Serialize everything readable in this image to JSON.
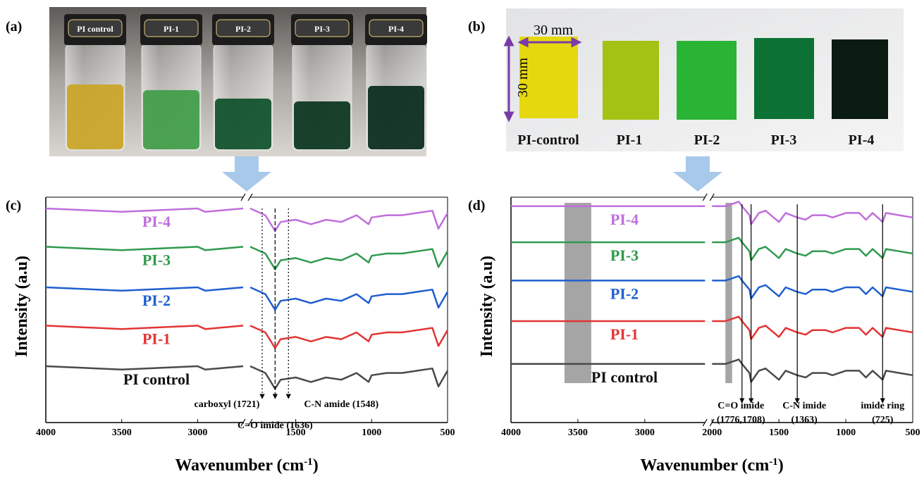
{
  "panels": {
    "a": {
      "label": "(a)",
      "vials": [
        "PI control",
        "PI-1",
        "PI-2",
        "PI-3",
        "PI-4"
      ]
    },
    "b": {
      "label": "(b)",
      "width": "30 mm",
      "height": "30 mm",
      "films": [
        "PI-control",
        "PI-1",
        "PI-2",
        "PI-3",
        "PI-4"
      ]
    },
    "c": {
      "label": "(c)"
    },
    "d": {
      "label": "(d)"
    }
  },
  "chart_data": [
    {
      "type": "line",
      "x_label": [
        "Wavenumber (cm",
        "-1",
        ")"
      ],
      "y_label": "Intensity (a.u)",
      "xlim": [
        4000,
        500
      ],
      "x_segments": [
        [
          4000,
          2700
        ],
        [
          1800,
          500
        ]
      ],
      "xticks": [
        4000,
        3500,
        3000,
        1500,
        1000,
        500
      ],
      "ylim": [
        0,
        100
      ],
      "x": [
        4000,
        3500,
        3000,
        2950,
        2700,
        2250,
        1800,
        1700,
        1636,
        1600,
        1500,
        1400,
        1300,
        1200,
        1100,
        1020,
        1000,
        900,
        800,
        700,
        600,
        560,
        500
      ],
      "series": [
        {
          "name": "PI-4",
          "color": "#bf6fdc",
          "values": [
            95,
            93.5,
            95,
            93.5,
            95,
            null,
            95,
            92,
            85,
            89,
            90,
            88,
            90,
            89,
            92,
            88,
            91,
            92,
            92,
            93,
            94,
            86,
            93
          ]
        },
        {
          "name": "PI-3",
          "color": "#2f9a4e",
          "values": [
            78,
            76.5,
            78,
            76.5,
            78,
            null,
            78,
            75,
            68,
            72,
            73,
            71,
            73,
            72,
            75,
            71,
            74,
            75,
            75,
            76,
            77,
            69,
            76
          ]
        },
        {
          "name": "PI-2",
          "color": "#1f5fd0",
          "values": [
            60,
            58.5,
            60,
            58.5,
            60,
            null,
            60,
            57,
            50,
            54,
            55,
            53,
            55,
            54,
            57,
            53,
            56,
            57,
            57,
            58,
            59,
            51,
            58
          ]
        },
        {
          "name": "PI-1",
          "color": "#e23434",
          "values": [
            43,
            41.5,
            43,
            41.5,
            43,
            null,
            43,
            40,
            33,
            37,
            38,
            36,
            38,
            37,
            40,
            36,
            39,
            40,
            40,
            41,
            42,
            34,
            41
          ]
        },
        {
          "name": "PI control",
          "color": "#4a4a4a",
          "values": [
            25,
            23.5,
            25,
            23.5,
            25,
            null,
            25,
            22,
            15,
            19,
            20,
            18,
            20,
            19,
            22,
            18,
            21,
            22,
            22,
            23,
            24,
            16,
            23
          ]
        }
      ],
      "annotations": [
        {
          "x": [
            1721
          ],
          "label": "carboxyl (1721)"
        },
        {
          "x": [
            1636
          ],
          "label": "C=O  imide (1636)"
        },
        {
          "x": [
            1548
          ],
          "label": "C-N  amide (1548)"
        }
      ]
    },
    {
      "type": "line",
      "x_label": [
        "Wavenumber (cm",
        "-1",
        ")"
      ],
      "y_label": "Intensity (a.u)",
      "xlim": [
        4000,
        500
      ],
      "x_segments": [
        [
          4000,
          2550
        ],
        [
          2000,
          500
        ]
      ],
      "xticks": [
        4000,
        3500,
        3000,
        2000,
        1500,
        1000,
        500
      ],
      "ylim": [
        0,
        100
      ],
      "shaded": [
        [
          3600,
          3400
        ],
        [
          1900,
          1850
        ]
      ],
      "x": [
        4000,
        3500,
        3000,
        2550,
        2250,
        2000,
        1900,
        1800,
        1776,
        1720,
        1708,
        1650,
        1600,
        1500,
        1450,
        1363,
        1300,
        1250,
        1150,
        1100,
        1000,
        900,
        850,
        800,
        725,
        700,
        600,
        500
      ],
      "series": [
        {
          "name": "PI-4",
          "color": "#bf6fdc",
          "values": [
            96,
            96,
            96,
            96,
            null,
            96,
            96,
            98,
            96,
            92,
            88,
            93,
            94,
            89,
            93,
            91,
            90,
            92,
            92,
            91,
            93,
            93,
            90,
            93,
            89,
            93,
            92,
            91
          ]
        },
        {
          "name": "PI-3",
          "color": "#2f9a4e",
          "values": [
            80,
            80,
            80,
            80,
            null,
            80,
            80,
            82,
            80,
            76,
            72,
            77,
            78,
            73,
            77,
            75,
            74,
            76,
            76,
            75,
            77,
            77,
            74,
            77,
            73,
            77,
            76,
            75
          ]
        },
        {
          "name": "PI-2",
          "color": "#1f5fd0",
          "values": [
            63,
            63,
            63,
            63,
            null,
            63,
            63,
            65,
            63,
            59,
            55,
            60,
            61,
            56,
            60,
            58,
            57,
            59,
            59,
            58,
            60,
            60,
            57,
            60,
            56,
            60,
            59,
            58
          ]
        },
        {
          "name": "PI-1",
          "color": "#e23434",
          "values": [
            45,
            45,
            45,
            45,
            null,
            45,
            45,
            47,
            45,
            41,
            37,
            42,
            43,
            38,
            42,
            40,
            39,
            41,
            41,
            40,
            42,
            42,
            39,
            42,
            38,
            42,
            41,
            40
          ]
        },
        {
          "name": "PI control",
          "color": "#4a4a4a",
          "values": [
            26,
            26,
            26,
            26,
            null,
            26,
            26,
            28,
            26,
            22,
            18,
            23,
            24,
            19,
            23,
            21,
            20,
            22,
            22,
            21,
            23,
            23,
            20,
            23,
            19,
            23,
            22,
            21
          ]
        }
      ],
      "annotations": [
        {
          "x": [
            1776,
            1708
          ],
          "label": "C=O  imide",
          "sublabel": "(1776,1708)"
        },
        {
          "x": [
            1363
          ],
          "label": "C-N  imide",
          "sublabel": "(1363)"
        },
        {
          "x": [
            725
          ],
          "label": "imide ring",
          "sublabel": "(725)"
        }
      ]
    }
  ]
}
